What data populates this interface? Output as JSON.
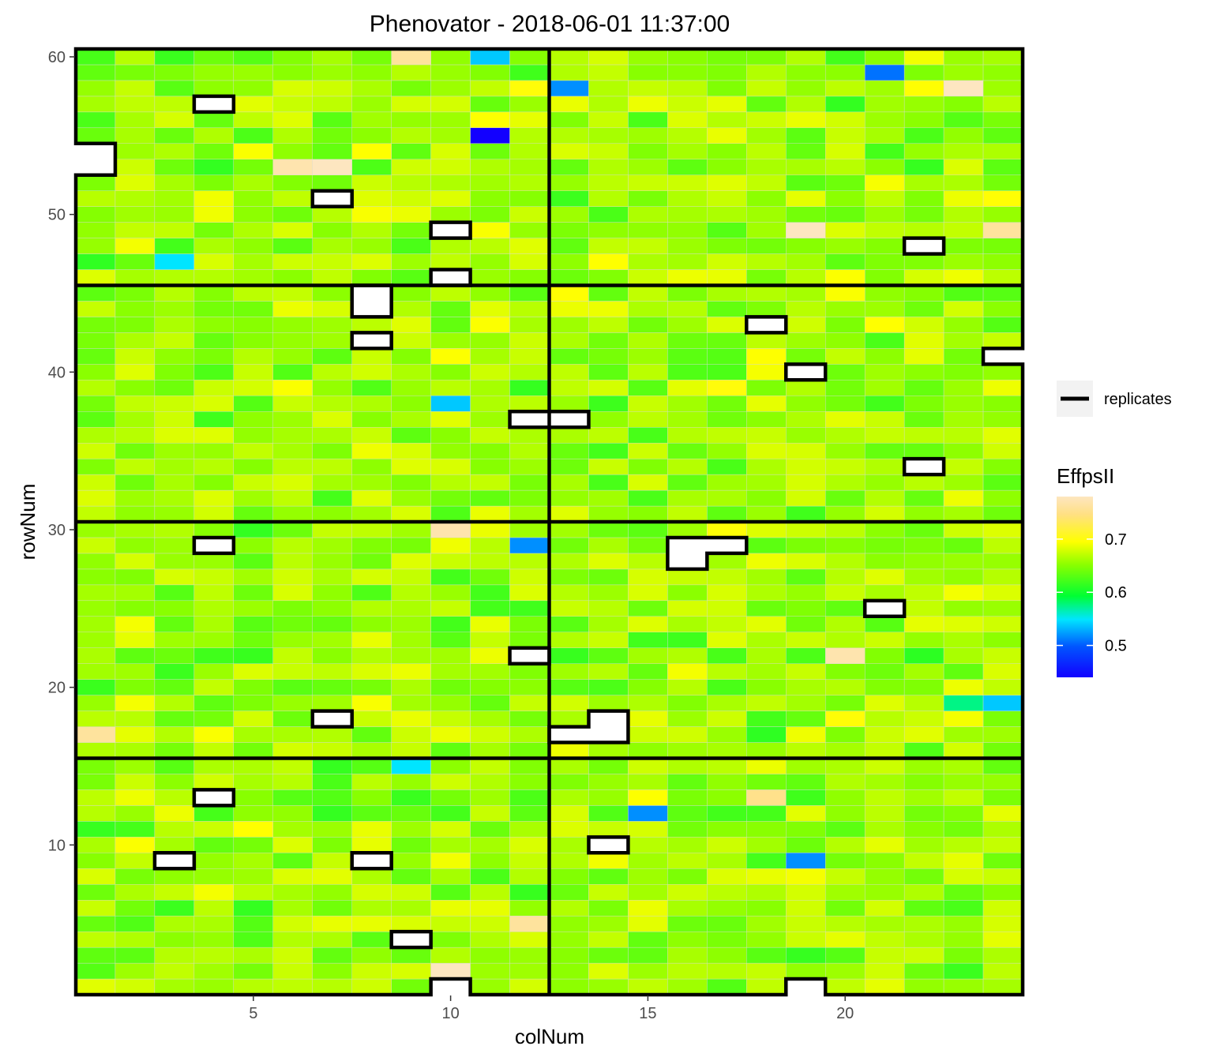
{
  "chart_data": {
    "type": "heatmap",
    "title": "Phenovator - 2018-06-01 11:37:00",
    "xlabel": "colNum",
    "ylabel": "rowNum",
    "xlim": [
      0.5,
      24.5
    ],
    "ylim": [
      0.5,
      60.5
    ],
    "x_ticks": [
      5,
      10,
      15,
      20
    ],
    "y_ticks": [
      10,
      20,
      30,
      40,
      50,
      60
    ],
    "grid": false,
    "legend": {
      "position": "right",
      "line_entry": {
        "label": "replicates",
        "color": "#000000"
      },
      "colorbar": {
        "title": "EffpsII",
        "ticks": [
          0.5,
          0.6,
          0.7
        ],
        "range": [
          0.44,
          0.78
        ],
        "colors": [
          "#1200ff",
          "#0055ff",
          "#00e5ff",
          "#00ff33",
          "#88ff00",
          "#ffff00",
          "#ffe082",
          "#fde6c0"
        ]
      }
    },
    "panel_dividers": {
      "x": [
        12.5
      ],
      "y": [
        15.5,
        30.5,
        45.5
      ]
    },
    "value_range": [
      0.44,
      0.78
    ],
    "base_value": 0.66,
    "cell_variation": 0.045,
    "missing_cells": [
      [
        1,
        53
      ],
      [
        1,
        54
      ],
      [
        4,
        57
      ],
      [
        7,
        51
      ],
      [
        10,
        49
      ],
      [
        10,
        46
      ],
      [
        8,
        44
      ],
      [
        8,
        45
      ],
      [
        8,
        42
      ],
      [
        18,
        43
      ],
      [
        19,
        40
      ],
      [
        24,
        41
      ],
      [
        12,
        37
      ],
      [
        13,
        37
      ],
      [
        22,
        48
      ],
      [
        22,
        34
      ],
      [
        4,
        29
      ],
      [
        16,
        29
      ],
      [
        17,
        29
      ],
      [
        16,
        28
      ],
      [
        21,
        25
      ],
      [
        12,
        22
      ],
      [
        7,
        18
      ],
      [
        13,
        17
      ],
      [
        14,
        17
      ],
      [
        14,
        18
      ],
      [
        4,
        13
      ],
      [
        3,
        9
      ],
      [
        8,
        9
      ],
      [
        14,
        10
      ],
      [
        9,
        4
      ],
      [
        10,
        1
      ],
      [
        19,
        1
      ]
    ],
    "low_value_cells": [
      [
        11,
        60,
        0.54
      ],
      [
        11,
        55,
        0.44
      ],
      [
        13,
        58,
        0.52
      ],
      [
        21,
        59,
        0.51
      ],
      [
        3,
        47,
        0.55
      ],
      [
        10,
        38,
        0.54
      ],
      [
        12,
        29,
        0.52
      ],
      [
        9,
        15,
        0.55
      ],
      [
        15,
        12,
        0.52
      ],
      [
        19,
        9,
        0.52
      ],
      [
        24,
        19,
        0.54
      ],
      [
        23,
        19,
        0.58
      ]
    ],
    "high_value_cells": [
      [
        9,
        60,
        0.76
      ],
      [
        6,
        53,
        0.77
      ],
      [
        7,
        53,
        0.78
      ],
      [
        23,
        58,
        0.78
      ],
      [
        19,
        49,
        0.78
      ],
      [
        24,
        49,
        0.76
      ],
      [
        10,
        30,
        0.77
      ],
      [
        20,
        22,
        0.77
      ],
      [
        12,
        5,
        0.76
      ],
      [
        10,
        2,
        0.78
      ],
      [
        1,
        17,
        0.76
      ],
      [
        18,
        13,
        0.75
      ]
    ]
  }
}
